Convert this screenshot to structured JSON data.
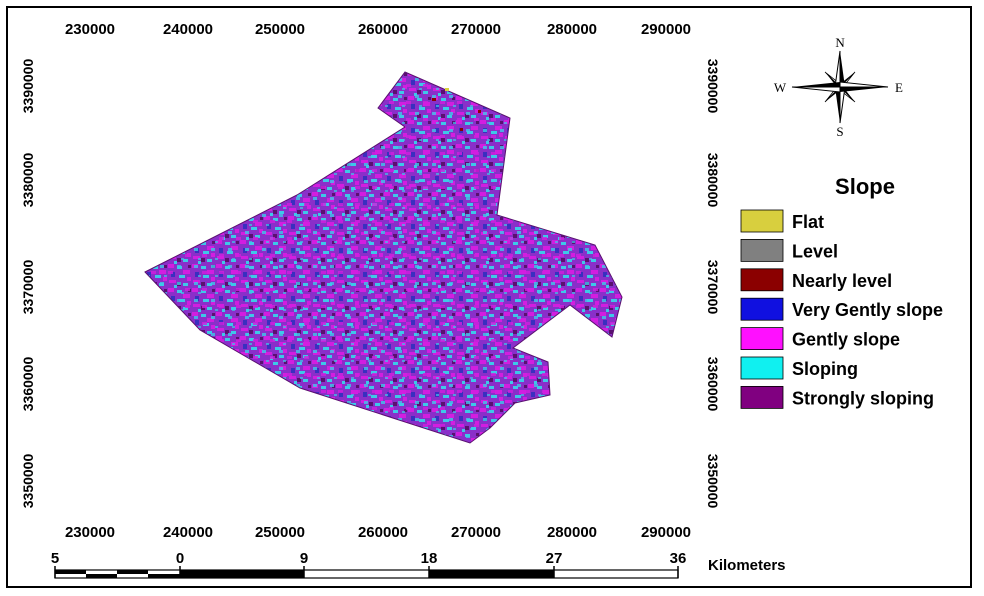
{
  "map": {
    "x_ticks_top": [
      "230000",
      "240000",
      "250000",
      "260000",
      "270000",
      "280000",
      "290000"
    ],
    "x_ticks_bottom": [
      "230000",
      "240000",
      "250000",
      "260000",
      "270000",
      "280000",
      "290000"
    ],
    "y_ticks_left": [
      "3390000",
      "3380000",
      "3370000",
      "3360000",
      "3350000"
    ],
    "y_ticks_right": [
      "3390000",
      "3380000",
      "3370000",
      "3360000",
      "3350000"
    ]
  },
  "compass": {
    "n": "N",
    "s": "S",
    "e": "E",
    "w": "W"
  },
  "legend": {
    "title": "Slope",
    "items": [
      {
        "label": "Flat",
        "color": "#d8cf3e"
      },
      {
        "label": "Level",
        "color": "#808080"
      },
      {
        "label": "Nearly level",
        "color": "#8b0000"
      },
      {
        "label": "Very Gently slope",
        "color": "#1010e0"
      },
      {
        "label": "Gently slope",
        "color": "#ff10ff"
      },
      {
        "label": "Sloping",
        "color": "#10f0f0"
      },
      {
        "label": "Strongly sloping",
        "color": "#800080"
      }
    ]
  },
  "scalebar": {
    "labels": [
      "5",
      "0",
      "9",
      "18",
      "27",
      "36"
    ],
    "unit": "Kilometers"
  },
  "colors": {
    "region_base": "#8a2fc9",
    "texture_magenta": "#d21ee0",
    "texture_cyan": "#3ec8e8",
    "texture_blue": "#3a2fc0",
    "texture_dark": "#5a1070"
  }
}
